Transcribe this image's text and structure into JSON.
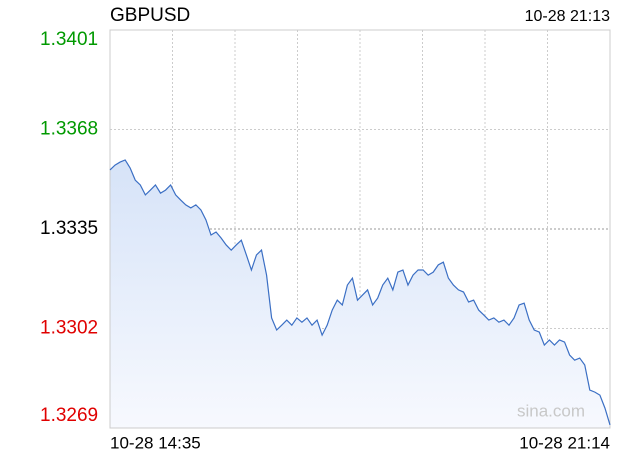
{
  "chart_data": {
    "type": "line",
    "title": "GBPUSD",
    "timestamp": "10-28 21:13",
    "watermark": "sina.com",
    "x_labels": [
      "10-28 14:35",
      "10-28 21:14"
    ],
    "color": "#3b6fc4",
    "ylim": [
      1.3269,
      1.3401
    ],
    "yticks": [
      1.3269,
      1.3302,
      1.3335,
      1.3368,
      1.3401
    ],
    "ytick_colors": [
      "#e00000",
      "#e00000",
      "#000000",
      "#009900",
      "#009900"
    ],
    "grid": true,
    "values": [
      1.33546,
      1.33562,
      1.33572,
      1.33579,
      1.33552,
      1.33512,
      1.33496,
      1.33463,
      1.33479,
      1.33496,
      1.33469,
      1.33479,
      1.33496,
      1.33463,
      1.33446,
      1.3343,
      1.3342,
      1.3343,
      1.33413,
      1.3338,
      1.3333,
      1.3334,
      1.3332,
      1.33297,
      1.3328,
      1.33297,
      1.33313,
      1.33264,
      1.33214,
      1.33264,
      1.3328,
      1.33197,
      1.33055,
      1.33015,
      1.33031,
      1.33048,
      1.33031,
      1.33055,
      1.33041,
      1.33055,
      1.33031,
      1.33048,
      1.32998,
      1.33031,
      1.33081,
      1.33114,
      1.33098,
      1.33164,
      1.33187,
      1.33114,
      1.33131,
      1.33148,
      1.33098,
      1.33121,
      1.33164,
      1.33187,
      1.33148,
      1.33207,
      1.33214,
      1.33164,
      1.33197,
      1.33214,
      1.33214,
      1.33197,
      1.33207,
      1.33231,
      1.3324,
      1.33187,
      1.33164,
      1.33148,
      1.33141,
      1.33108,
      1.33114,
      1.33081,
      1.33065,
      1.33048,
      1.33055,
      1.33041,
      1.33048,
      1.33031,
      1.33055,
      1.33098,
      1.33104,
      1.33048,
      1.33015,
      1.33008,
      1.32965,
      1.32982,
      1.32965,
      1.32982,
      1.32975,
      1.32932,
      1.32915,
      1.32922,
      1.32899,
      1.32816,
      1.32809,
      1.32799,
      1.32756,
      1.327
    ]
  }
}
